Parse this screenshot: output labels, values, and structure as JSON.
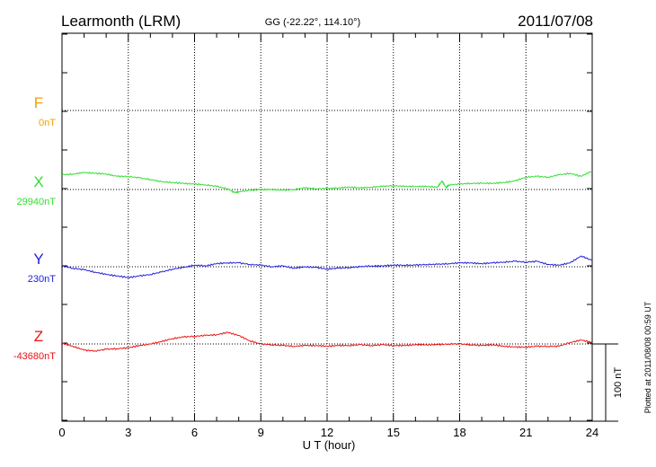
{
  "header": {
    "station": "Learmonth (LRM)",
    "coords": "GG (-22.22°, 114.10°)",
    "date": "2011/07/08"
  },
  "footer": {
    "plotted": "Plotted at 2011/08/08 00:59 UT"
  },
  "scale_bar": {
    "label": "100 nT",
    "value_nt": 100
  },
  "chart_data": {
    "type": "line",
    "title": "Learmonth (LRM)",
    "xlabel": "U T (hour)",
    "ylabel": "",
    "xlim": [
      0,
      24
    ],
    "xticks": [
      0,
      3,
      6,
      9,
      12,
      15,
      18,
      21,
      24
    ],
    "x_tick_labels": [
      "0",
      "3",
      "6",
      "9",
      "12",
      "15",
      "18",
      "21",
      "24"
    ],
    "grid": true,
    "series": [
      {
        "name": "F",
        "baseline_label": "0nT",
        "baseline": 0,
        "color": "#f5a000",
        "x": [],
        "values": []
      },
      {
        "name": "X",
        "baseline_label": "29940nT",
        "baseline": 29940,
        "color": "#33dd33",
        "x": [
          0,
          0.5,
          1,
          1.5,
          2,
          2.5,
          3,
          3.5,
          4,
          4.5,
          5,
          5.5,
          6,
          6.5,
          7,
          7.5,
          7.8,
          8,
          8.5,
          9,
          9.5,
          10,
          10.5,
          11,
          11.5,
          12,
          12.5,
          13,
          13.5,
          14,
          14.5,
          15,
          15.5,
          16,
          16.5,
          17,
          17.2,
          17.4,
          17.5,
          18,
          18.5,
          19,
          19.5,
          20,
          20.5,
          21,
          21.5,
          22,
          22.5,
          23,
          23.5,
          24
        ],
        "values": [
          29959,
          29960,
          29962,
          29961,
          29960,
          29957,
          29957,
          29955,
          29953,
          29950,
          29949,
          29948,
          29947,
          29946,
          29944,
          29941,
          29936,
          29937,
          29939,
          29940,
          29940,
          29939,
          29940,
          29942,
          29941,
          29941,
          29942,
          29943,
          29942,
          29943,
          29944,
          29945,
          29944,
          29944,
          29944,
          29943,
          29951,
          29942,
          29946,
          29947,
          29948,
          29948,
          29948,
          29949,
          29951,
          29956,
          29957,
          29956,
          29959,
          29961,
          29957,
          29964
        ]
      },
      {
        "name": "Y",
        "baseline_label": "230nT",
        "baseline": 230,
        "color": "#2020dd",
        "x": [
          0,
          0.5,
          1,
          1.5,
          2,
          2.5,
          3,
          3.5,
          4,
          4.5,
          5,
          5.5,
          6,
          6.5,
          7,
          7.5,
          8,
          8.5,
          9,
          9.5,
          10,
          10.5,
          11,
          11.5,
          12,
          12.5,
          13,
          13.5,
          14,
          14.5,
          15,
          15.5,
          16,
          16.5,
          17,
          17.5,
          18,
          18.5,
          19,
          19.5,
          20,
          20.5,
          21,
          21.5,
          22,
          22.5,
          23,
          23.5,
          24
        ],
        "values": [
          231,
          228,
          226,
          223,
          220,
          218,
          216,
          218,
          220,
          223,
          227,
          229,
          232,
          231,
          234,
          235,
          235,
          233,
          232,
          230,
          231,
          228,
          230,
          229,
          227,
          228,
          229,
          230,
          231,
          231,
          232,
          232,
          232,
          233,
          233,
          234,
          235,
          235,
          234,
          235,
          236,
          237,
          236,
          237,
          233,
          232,
          235,
          244,
          238
        ]
      },
      {
        "name": "Z",
        "baseline_label": "-43680nT",
        "baseline": -43680,
        "color": "#ee1111",
        "x": [
          0,
          0.5,
          1,
          1.5,
          2,
          2.5,
          3,
          3.5,
          4,
          4.5,
          5,
          5.5,
          6,
          6.5,
          7,
          7.5,
          8,
          8.5,
          9,
          9.5,
          10,
          10.5,
          11,
          11.5,
          12,
          12.5,
          13,
          13.5,
          14,
          14.5,
          15,
          15.5,
          16,
          16.5,
          17,
          17.5,
          18,
          18.5,
          19,
          19.5,
          20,
          20.5,
          21,
          21.5,
          22,
          22.5,
          23,
          23.5,
          24
        ],
        "values": [
          -43679,
          -43683,
          -43688,
          -43689,
          -43687,
          -43686,
          -43685,
          -43682,
          -43680,
          -43677,
          -43673,
          -43671,
          -43670,
          -43669,
          -43668,
          -43665,
          -43669,
          -43676,
          -43680,
          -43681,
          -43682,
          -43683,
          -43682,
          -43682,
          -43683,
          -43682,
          -43682,
          -43681,
          -43682,
          -43681,
          -43682,
          -43682,
          -43681,
          -43681,
          -43681,
          -43680,
          -43680,
          -43681,
          -43682,
          -43681,
          -43683,
          -43684,
          -43684,
          -43683,
          -43683,
          -43683,
          -43678,
          -43675,
          -43678
        ]
      }
    ]
  }
}
